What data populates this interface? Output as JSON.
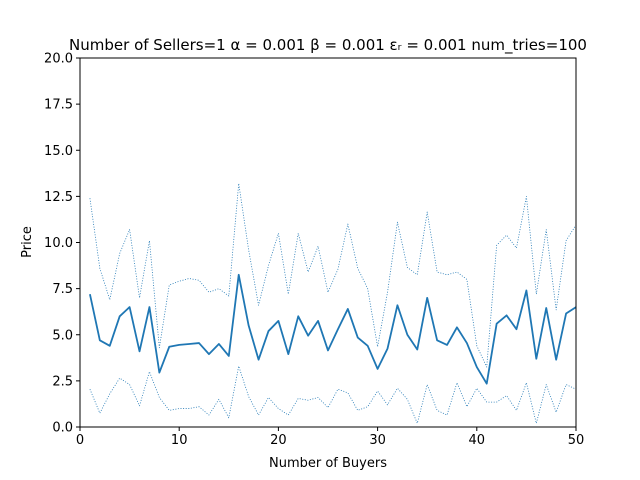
{
  "chart_data": {
    "type": "line",
    "title": "Number of Sellers=1  α = 0.001  β = 0.001  εᵣ = 0.001 num_tries=100",
    "xlabel": "Number of Buyers",
    "ylabel": "Price",
    "xlim": [
      0,
      50
    ],
    "ylim": [
      0,
      20
    ],
    "xticks": [
      0,
      10,
      20,
      30,
      40,
      50
    ],
    "xtick_labels": [
      "0",
      "10",
      "20",
      "30",
      "40",
      "50"
    ],
    "yticks": [
      0,
      2.5,
      5,
      7.5,
      10,
      12.5,
      15,
      17.5,
      20
    ],
    "ytick_labels": [
      "0.0",
      "2.5",
      "5.0",
      "7.5",
      "10.0",
      "12.5",
      "15.0",
      "17.5",
      "20.0"
    ],
    "grid": false,
    "x": [
      1,
      2,
      3,
      4,
      5,
      6,
      7,
      8,
      9,
      10,
      11,
      12,
      13,
      14,
      15,
      16,
      17,
      18,
      19,
      20,
      21,
      22,
      23,
      24,
      25,
      26,
      27,
      28,
      29,
      30,
      31,
      32,
      33,
      34,
      35,
      36,
      37,
      38,
      39,
      40,
      41,
      42,
      43,
      44,
      45,
      46,
      47,
      48,
      49,
      50
    ],
    "series": [
      {
        "style": "solid",
        "color": "#1f77b4",
        "values": [
          7.2,
          4.7,
          4.4,
          6.0,
          6.5,
          4.1,
          6.5,
          2.95,
          4.35,
          4.45,
          4.5,
          4.55,
          3.95,
          4.5,
          3.85,
          8.25,
          5.5,
          3.65,
          5.2,
          5.75,
          3.95,
          6.0,
          4.95,
          5.75,
          4.15,
          5.3,
          6.4,
          4.85,
          4.4,
          3.15,
          4.25,
          6.6,
          5.0,
          4.2,
          7.0,
          4.7,
          4.45,
          5.4,
          4.55,
          3.25,
          2.35,
          5.6,
          6.05,
          5.3,
          7.4,
          3.7,
          6.45,
          3.65,
          6.15,
          6.5
        ]
      },
      {
        "style": "dotted",
        "color": "#1f77b4",
        "values": [
          12.4,
          8.6,
          6.9,
          9.4,
          10.7,
          7.0,
          10.1,
          4.3,
          7.7,
          7.9,
          8.05,
          7.95,
          7.3,
          7.5,
          7.1,
          13.2,
          9.6,
          6.6,
          8.75,
          10.5,
          7.2,
          10.5,
          8.4,
          9.8,
          7.3,
          8.55,
          11.0,
          8.6,
          7.5,
          4.35,
          7.3,
          11.1,
          8.65,
          8.25,
          11.65,
          8.4,
          8.25,
          8.4,
          8.0,
          4.4,
          3.25,
          9.85,
          10.4,
          9.7,
          12.5,
          7.2,
          10.7,
          6.35,
          10.1,
          10.95
        ]
      },
      {
        "style": "dotted",
        "color": "#1f77b4",
        "values": [
          2.05,
          0.75,
          1.8,
          2.65,
          2.3,
          1.15,
          3.0,
          1.6,
          0.9,
          1.0,
          1.0,
          1.1,
          0.65,
          1.5,
          0.5,
          3.3,
          1.65,
          0.65,
          1.6,
          1.0,
          0.65,
          1.55,
          1.45,
          1.6,
          1.05,
          2.05,
          1.85,
          0.9,
          1.1,
          1.95,
          1.2,
          2.1,
          1.5,
          0.2,
          2.3,
          0.9,
          0.65,
          2.4,
          1.1,
          2.1,
          1.35,
          1.35,
          1.7,
          0.9,
          2.4,
          0.2,
          2.3,
          0.8,
          2.3,
          2.05
        ]
      }
    ]
  }
}
